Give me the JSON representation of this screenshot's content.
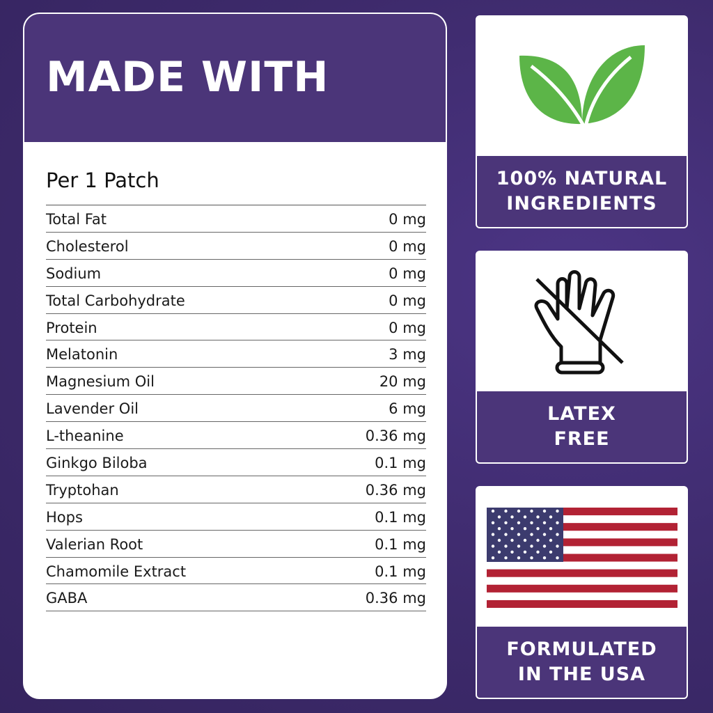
{
  "panel": {
    "title": "MADE WITH",
    "subtitle": "Per 1 Patch",
    "rows": [
      {
        "name": "Total Fat",
        "amount": "0 mg"
      },
      {
        "name": "Cholesterol",
        "amount": "0 mg"
      },
      {
        "name": "Sodium",
        "amount": "0 mg"
      },
      {
        "name": "Total Carbohydrate",
        "amount": "0 mg"
      },
      {
        "name": "Protein",
        "amount": "0 mg"
      },
      {
        "name": "Melatonin",
        "amount": "3 mg"
      },
      {
        "name": "Magnesium Oil",
        "amount": "20 mg"
      },
      {
        "name": "Lavender Oil",
        "amount": "6 mg"
      },
      {
        "name": "L-theanine",
        "amount": "0.36 mg"
      },
      {
        "name": "Ginkgo Biloba",
        "amount": "0.1 mg"
      },
      {
        "name": "Tryptohan",
        "amount": "0.36 mg"
      },
      {
        "name": "Hops",
        "amount": "0.1 mg"
      },
      {
        "name": "Valerian Root",
        "amount": "0.1 mg"
      },
      {
        "name": "Chamomile Extract",
        "amount": "0.1 mg"
      },
      {
        "name": "GABA",
        "amount": "0.36 mg"
      }
    ]
  },
  "badges": [
    {
      "icon": "leaf-icon",
      "line1": "100% NATURAL",
      "line2": "INGREDIENTS"
    },
    {
      "icon": "no-latex-glove-icon",
      "line1": "LATEX",
      "line2": "FREE"
    },
    {
      "icon": "us-flag-icon",
      "line1": "FORMULATED",
      "line2": "IN THE USA"
    }
  ],
  "colors": {
    "brand_purple": "#4b3579",
    "background": "#3d2a6b",
    "leaf_green": "#5cb548",
    "flag_red": "#b22234",
    "flag_blue": "#3c3b6e"
  }
}
